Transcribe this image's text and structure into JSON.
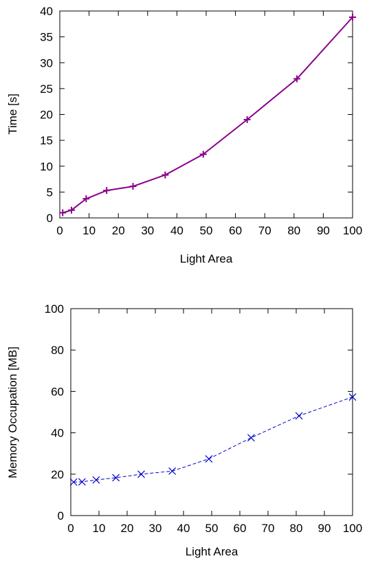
{
  "chart_data": [
    {
      "type": "line",
      "title": "",
      "xlabel": "Light Area",
      "ylabel": "Time [s]",
      "xlim": [
        0,
        100
      ],
      "ylim": [
        0,
        40
      ],
      "xticks": [
        0,
        10,
        20,
        30,
        40,
        50,
        60,
        70,
        80,
        90,
        100
      ],
      "yticks": [
        0,
        5,
        10,
        15,
        20,
        25,
        30,
        35,
        40
      ],
      "grid": false,
      "legend": "none",
      "series": [
        {
          "color": "#8b008b",
          "line_style": "solid",
          "marker": "plus",
          "x": [
            1,
            4,
            9,
            16,
            25,
            36,
            49,
            64,
            81,
            100
          ],
          "y": [
            1.0,
            1.5,
            3.7,
            5.3,
            6.1,
            8.3,
            12.3,
            19.0,
            26.9,
            38.8
          ]
        }
      ]
    },
    {
      "type": "line",
      "title": "",
      "xlabel": "Light Area",
      "ylabel": "Memory Occupation [MB]",
      "xlim": [
        0,
        100
      ],
      "ylim": [
        0,
        100
      ],
      "xticks": [
        0,
        10,
        20,
        30,
        40,
        50,
        60,
        70,
        80,
        90,
        100
      ],
      "yticks": [
        0,
        20,
        40,
        60,
        80,
        100
      ],
      "grid": false,
      "legend": "none",
      "series": [
        {
          "color": "#0000cd",
          "line_style": "dashed",
          "marker": "cross",
          "x": [
            1,
            4,
            9,
            16,
            25,
            36,
            49,
            64,
            81,
            100
          ],
          "y": [
            16.2,
            16.3,
            17.2,
            18.3,
            20.0,
            21.5,
            27.4,
            37.6,
            48.2,
            57.3
          ]
        }
      ]
    }
  ]
}
